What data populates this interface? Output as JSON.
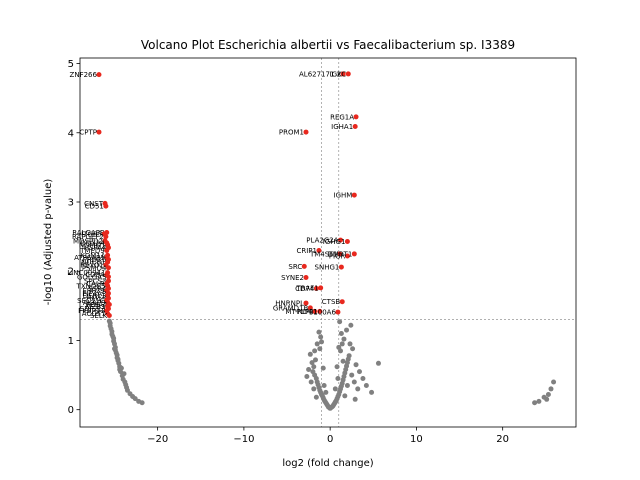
{
  "chart_data": {
    "type": "scatter",
    "title": "Volcano Plot Escherichia albertii vs Faecalibacterium sp. I3389",
    "xlabel": "log2 (fold change)",
    "ylabel": "-log10 (Adjusted p-value)",
    "xlim": [
      -29.0,
      28.5
    ],
    "ylim": [
      -0.25,
      5.08
    ],
    "xticks": [
      -20,
      -10,
      0,
      10,
      20
    ],
    "yticks": [
      0,
      1,
      2,
      3,
      4,
      5
    ],
    "grid": false,
    "thresholds": {
      "log2fc": [
        -1,
        1
      ],
      "neg_log10_p": 1.3
    },
    "colors": {
      "significant": "#e8281e",
      "not_significant": "#808080"
    },
    "significant_points": [
      {
        "label": "ZNF266",
        "x": -26.8,
        "y": 4.84
      },
      {
        "label": "CPTP",
        "x": -26.8,
        "y": 4.01
      },
      {
        "label": "CNST",
        "x": -26.1,
        "y": 2.98
      },
      {
        "label": "CD51",
        "x": -26.0,
        "y": 2.94
      },
      {
        "label": "RALGAPB",
        "x": -25.9,
        "y": 2.56
      },
      {
        "label": "ITGB5",
        "x": -26.2,
        "y": 2.54
      },
      {
        "label": "RAPGEF2",
        "x": -26.0,
        "y": 2.5
      },
      {
        "label": "MOSPD2",
        "x": -26.1,
        "y": 2.44
      },
      {
        "label": "DDX24",
        "x": -25.9,
        "y": 2.41
      },
      {
        "label": "NOMO1",
        "x": -25.8,
        "y": 2.38
      },
      {
        "label": "HSPA4",
        "x": -25.7,
        "y": 2.34
      },
      {
        "label": "TMED9",
        "x": -25.9,
        "y": 2.3
      },
      {
        "label": "KDM1A",
        "x": -25.8,
        "y": 2.23
      },
      {
        "label": "ATP6AP1",
        "x": -25.9,
        "y": 2.2
      },
      {
        "label": "PRDX5",
        "x": -25.7,
        "y": 2.17
      },
      {
        "label": "NUCB1",
        "x": -25.8,
        "y": 2.13
      },
      {
        "label": "REXO1",
        "x": -26.0,
        "y": 2.09
      },
      {
        "label": "PSMD4",
        "x": -25.7,
        "y": 2.05
      },
      {
        "label": "LINC00941",
        "x": -25.8,
        "y": 1.98
      },
      {
        "label": "CD8A",
        "x": -25.9,
        "y": 1.95
      },
      {
        "label": "GOLGA5",
        "x": -25.7,
        "y": 1.92
      },
      {
        "label": "SPCS3",
        "x": -25.7,
        "y": 1.86
      },
      {
        "label": "CALR",
        "x": -25.9,
        "y": 1.82
      },
      {
        "label": "TXNDC5",
        "x": -25.8,
        "y": 1.79
      },
      {
        "label": "SSR4",
        "x": -25.7,
        "y": 1.75
      },
      {
        "label": "ERP29",
        "x": -25.9,
        "y": 1.72
      },
      {
        "label": "EIF4A3",
        "x": -25.7,
        "y": 1.68
      },
      {
        "label": "DERL1",
        "x": -25.8,
        "y": 1.65
      },
      {
        "label": "HM13",
        "x": -25.7,
        "y": 1.61
      },
      {
        "label": "SEC11C",
        "x": -25.9,
        "y": 1.58
      },
      {
        "label": "AKAP9",
        "x": -25.8,
        "y": 1.55
      },
      {
        "label": "PDIA4",
        "x": -25.6,
        "y": 1.52
      },
      {
        "label": "MZB1",
        "x": -25.8,
        "y": 1.49
      },
      {
        "label": "SDF2L1",
        "x": -25.7,
        "y": 1.46
      },
      {
        "label": "FKBP11",
        "x": -25.9,
        "y": 1.43
      },
      {
        "label": "ACOT7",
        "x": -25.8,
        "y": 1.39
      },
      {
        "label": "SELK",
        "x": -25.6,
        "y": 1.36
      },
      {
        "label": "AL627171.2",
        "x": 1.5,
        "y": 4.85
      },
      {
        "label": "IGKC",
        "x": 2.1,
        "y": 4.85
      },
      {
        "label": "REG1A",
        "x": 3.0,
        "y": 4.23
      },
      {
        "label": "IGHA1",
        "x": 2.9,
        "y": 4.09
      },
      {
        "label": "PROM1",
        "x": -2.8,
        "y": 4.01
      },
      {
        "label": "IGHM",
        "x": 2.8,
        "y": 3.1
      },
      {
        "label": "PLA2G2A",
        "x": 1.2,
        "y": 2.45
      },
      {
        "label": "IGHG1",
        "x": 2.0,
        "y": 2.43
      },
      {
        "label": "CRIP1",
        "x": -1.3,
        "y": 2.3
      },
      {
        "label": "TM4SF1",
        "x": 1.1,
        "y": 2.25
      },
      {
        "label": "PIGR",
        "x": 2.0,
        "y": 2.22
      },
      {
        "label": "DMBT1",
        "x": 2.8,
        "y": 2.25
      },
      {
        "label": "SRC",
        "x": -3.0,
        "y": 2.07
      },
      {
        "label": "SNHG1",
        "x": 1.3,
        "y": 2.06
      },
      {
        "label": "SYNE2",
        "x": -2.8,
        "y": 1.91
      },
      {
        "label": "CD74",
        "x": -1.6,
        "y": 1.75
      },
      {
        "label": "TRAF1",
        "x": -1.1,
        "y": 1.76
      },
      {
        "label": "CTSB",
        "x": 1.4,
        "y": 1.56
      },
      {
        "label": "HNRNPL",
        "x": -2.8,
        "y": 1.54
      },
      {
        "label": "GRAMD1B",
        "x": -2.3,
        "y": 1.47
      },
      {
        "label": "MT-ND4",
        "x": -1.8,
        "y": 1.42
      },
      {
        "label": "PLPP1",
        "x": -1.2,
        "y": 1.42
      },
      {
        "label": "S100A6",
        "x": 0.9,
        "y": 1.41
      }
    ],
    "nonsig_points": [
      [
        -25.6,
        1.28
      ],
      [
        -25.5,
        1.25
      ],
      [
        -25.5,
        1.21
      ],
      [
        -25.4,
        1.17
      ],
      [
        -25.3,
        1.13
      ],
      [
        -25.3,
        1.09
      ],
      [
        -25.2,
        1.06
      ],
      [
        -25.1,
        1.03
      ],
      [
        -25.1,
        0.99
      ],
      [
        -25.0,
        0.95
      ],
      [
        -24.9,
        0.9
      ],
      [
        -24.9,
        0.86
      ],
      [
        -24.8,
        0.82
      ],
      [
        -24.7,
        0.79
      ],
      [
        -24.7,
        0.75
      ],
      [
        -24.6,
        0.71
      ],
      [
        -24.5,
        0.67
      ],
      [
        -24.4,
        0.62
      ],
      [
        -24.4,
        0.58
      ],
      [
        -24.3,
        0.55
      ],
      [
        -24.1,
        0.49
      ],
      [
        -24.0,
        0.44
      ],
      [
        -23.8,
        0.4
      ],
      [
        -23.7,
        0.36
      ],
      [
        -23.6,
        0.32
      ],
      [
        -23.5,
        0.28
      ],
      [
        -23.2,
        0.23
      ],
      [
        -22.9,
        0.19
      ],
      [
        -22.6,
        0.16
      ],
      [
        -22.2,
        0.12
      ],
      [
        -21.8,
        0.1
      ],
      [
        -23.9,
        0.52
      ],
      [
        -24.2,
        0.6
      ],
      [
        -25.0,
        0.88
      ],
      [
        -24.6,
        0.73
      ],
      [
        -1.9,
        0.62
      ],
      [
        -2.1,
        0.68
      ],
      [
        -1.7,
        0.72
      ],
      [
        -2.0,
        0.55
      ],
      [
        -1.8,
        0.5
      ],
      [
        -1.6,
        0.45
      ],
      [
        -1.5,
        0.4
      ],
      [
        -1.4,
        0.36
      ],
      [
        -1.3,
        0.32
      ],
      [
        -1.2,
        0.28
      ],
      [
        -1.1,
        0.25
      ],
      [
        -1.0,
        0.22
      ],
      [
        -0.9,
        0.2
      ],
      [
        -0.8,
        0.17
      ],
      [
        -0.7,
        0.14
      ],
      [
        -0.6,
        0.12
      ],
      [
        -0.5,
        0.1
      ],
      [
        -0.4,
        0.08
      ],
      [
        -0.3,
        0.06
      ],
      [
        -0.2,
        0.04
      ],
      [
        -0.1,
        0.03
      ],
      [
        0.0,
        0.02
      ],
      [
        0.1,
        0.03
      ],
      [
        0.2,
        0.04
      ],
      [
        0.3,
        0.05
      ],
      [
        0.4,
        0.07
      ],
      [
        0.5,
        0.09
      ],
      [
        0.6,
        0.11
      ],
      [
        0.7,
        0.13
      ],
      [
        0.8,
        0.16
      ],
      [
        0.9,
        0.19
      ],
      [
        1.0,
        0.22
      ],
      [
        1.1,
        0.26
      ],
      [
        1.2,
        0.3
      ],
      [
        1.3,
        0.34
      ],
      [
        1.4,
        0.38
      ],
      [
        1.5,
        0.43
      ],
      [
        1.6,
        0.48
      ],
      [
        1.7,
        0.53
      ],
      [
        1.8,
        0.58
      ],
      [
        1.9,
        0.63
      ],
      [
        2.0,
        0.68
      ],
      [
        2.1,
        0.73
      ],
      [
        2.2,
        0.78
      ],
      [
        1.2,
        0.85
      ],
      [
        1.0,
        0.9
      ],
      [
        1.4,
        0.95
      ],
      [
        1.6,
        1.02
      ],
      [
        1.3,
        1.1
      ],
      [
        1.9,
        1.15
      ],
      [
        2.4,
        1.22
      ],
      [
        1.1,
        1.27
      ],
      [
        -1.1,
        1.05
      ],
      [
        -1.3,
        1.12
      ],
      [
        -1.5,
        0.95
      ],
      [
        -1.2,
        0.88
      ],
      [
        -2.3,
        0.8
      ],
      [
        -2.5,
        0.58
      ],
      [
        -2.7,
        0.48
      ],
      [
        -1.8,
        0.85
      ],
      [
        -1.0,
        0.98
      ],
      [
        -0.8,
        0.6
      ],
      [
        0.8,
        0.62
      ],
      [
        2.6,
        0.88
      ],
      [
        3.0,
        0.65
      ],
      [
        3.4,
        0.55
      ],
      [
        3.8,
        0.45
      ],
      [
        4.2,
        0.35
      ],
      [
        4.8,
        0.25
      ],
      [
        3.2,
        0.3
      ],
      [
        2.8,
        0.4
      ],
      [
        2.5,
        0.5
      ],
      [
        5.6,
        0.67
      ],
      [
        2.3,
        0.95
      ],
      [
        0.9,
        0.45
      ],
      [
        -0.7,
        0.35
      ],
      [
        -1.9,
        0.3
      ],
      [
        -2.2,
        0.4
      ],
      [
        1.7,
        0.2
      ],
      [
        2.9,
        0.15
      ],
      [
        -1.6,
        0.18
      ],
      [
        0.6,
        0.3
      ],
      [
        -0.5,
        0.25
      ],
      [
        2.0,
        0.35
      ],
      [
        1.5,
        0.7
      ],
      [
        23.7,
        0.1
      ],
      [
        24.2,
        0.12
      ],
      [
        24.8,
        0.18
      ],
      [
        25.3,
        0.22
      ],
      [
        25.6,
        0.3
      ],
      [
        25.9,
        0.4
      ],
      [
        25.1,
        0.15
      ]
    ]
  }
}
